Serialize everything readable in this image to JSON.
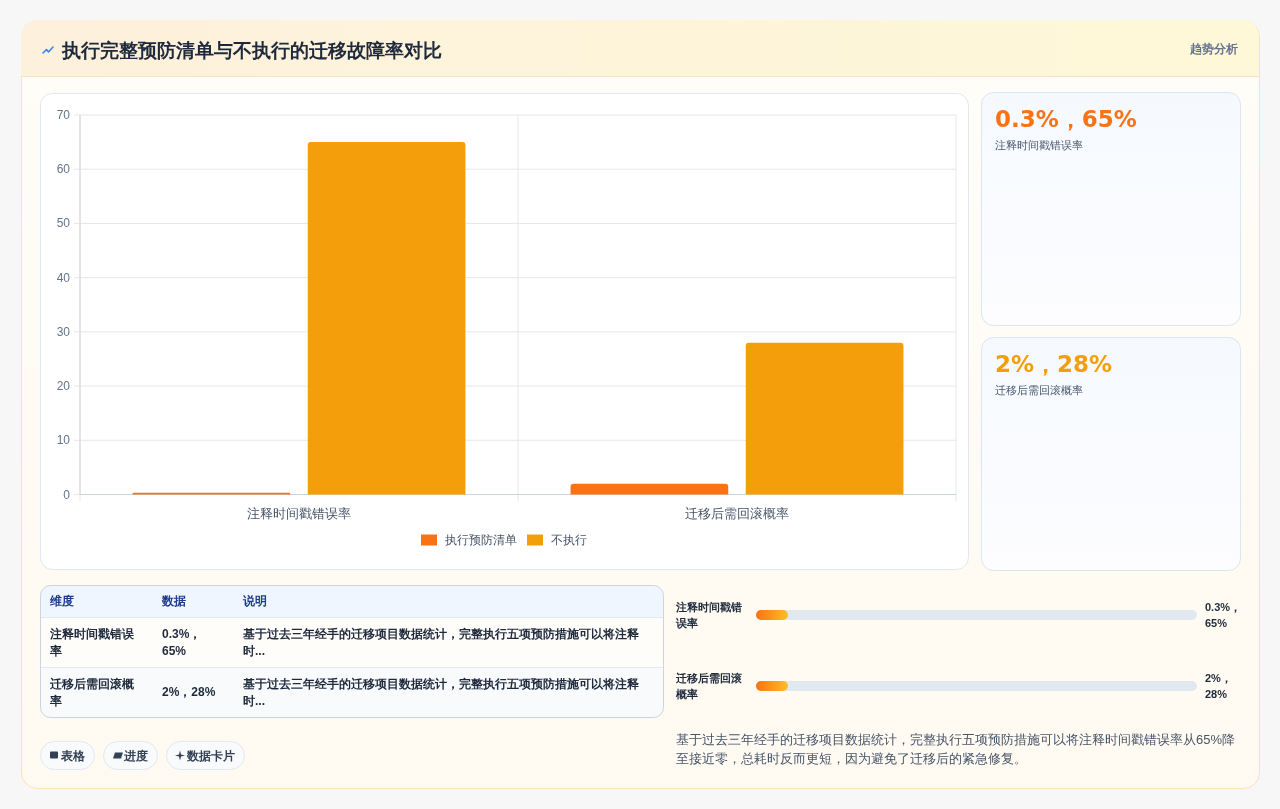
{
  "chart_data": [
    {
      "type": "bar",
      "title": "执行完整预防清单与不执行的迁移故障率对比",
      "annotations": [
        "趋势分析"
      ],
      "categories": [
        "注释时间戳错误率",
        "迁移后需回滚概率"
      ],
      "series": [
        {
          "name": "执行预防清单",
          "color": "#f97316",
          "values": [
            0.3,
            2
          ]
        },
        {
          "name": "不执行",
          "color": "#f59e0b",
          "values": [
            65,
            28
          ]
        }
      ],
      "ylim": [
        0,
        70
      ],
      "yticks": [
        0,
        10,
        20,
        30,
        40,
        50,
        60,
        70
      ],
      "grid": true,
      "legend": "bottom"
    },
    {
      "type": "other",
      "categories": [
        "注释时间戳错误率",
        "迁移后需回滚概率"
      ],
      "value_labels": [
        "0.3%，65%",
        "2%，28%"
      ],
      "colors": [
        "#f97316",
        "#f59e0b"
      ]
    },
    {
      "type": "other",
      "categories": [
        "维度",
        "数据",
        "说明"
      ],
      "cell_labels": [
        [
          "注释时间戳错误率",
          "0.3%，65%",
          "基于过去三年经手的迁移项目数据统计，完整执行五项预防措施可以将注释时..."
        ],
        [
          "迁移后需回滚概率",
          "2%，28%",
          "基于过去三年经手的迁移项目数据统计，完整执行五项预防措施可以将注释时..."
        ]
      ]
    },
    {
      "type": "other",
      "categories": [
        "注释时间戳错误率",
        "迁移后需回滚概率"
      ],
      "value_labels": [
        "0.3%，65%",
        "2%，28%"
      ],
      "annotations": [
        "基于过去三年经手的迁移项目数据统计，完整执行五项预防措施可以将注释时间戳错误率从65%降至接近零，总耗时反而更短，因为避免了迁移后的紧急修复。"
      ]
    },
    {
      "type": "other",
      "annotations": [
        "表格",
        "进度",
        "数据卡片"
      ]
    }
  ]
}
